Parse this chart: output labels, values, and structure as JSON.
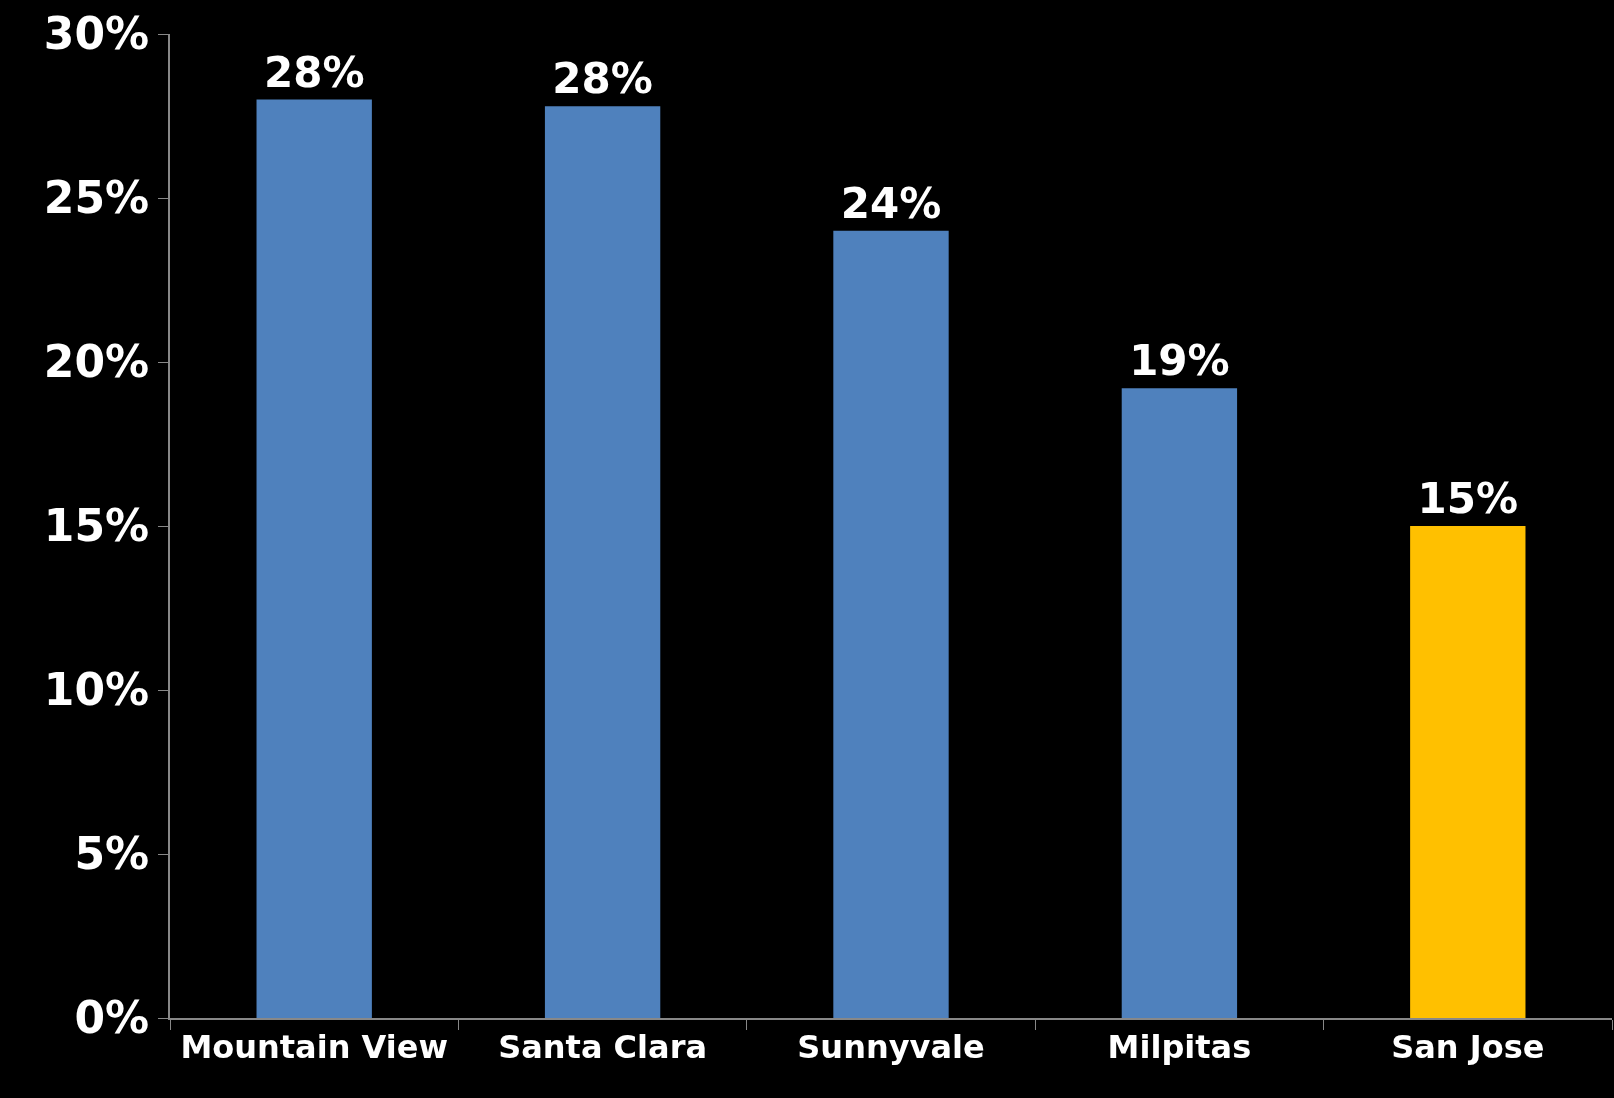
{
  "chart_data": {
    "type": "bar",
    "categories": [
      "Mountain View",
      "Santa Clara",
      "Sunnyvale",
      "Milpitas",
      "San Jose"
    ],
    "values": [
      28,
      27.8,
      24,
      19.2,
      15
    ],
    "colors": [
      "#4f81bd",
      "#4f81bd",
      "#4f81bd",
      "#4f81bd",
      "#ffc000"
    ],
    "value_labels": [
      "28%",
      "28%",
      "24%",
      "19%",
      "15%"
    ],
    "ylim": [
      0,
      30
    ],
    "yticks": [
      {
        "value": 0,
        "label": "0%"
      },
      {
        "value": 5,
        "label": "5%"
      },
      {
        "value": 10,
        "label": "10%"
      },
      {
        "value": 15,
        "label": "15%"
      },
      {
        "value": 20,
        "label": "20%"
      },
      {
        "value": 25,
        "label": "25%"
      },
      {
        "value": 30,
        "label": "30%"
      }
    ],
    "grid": false
  }
}
